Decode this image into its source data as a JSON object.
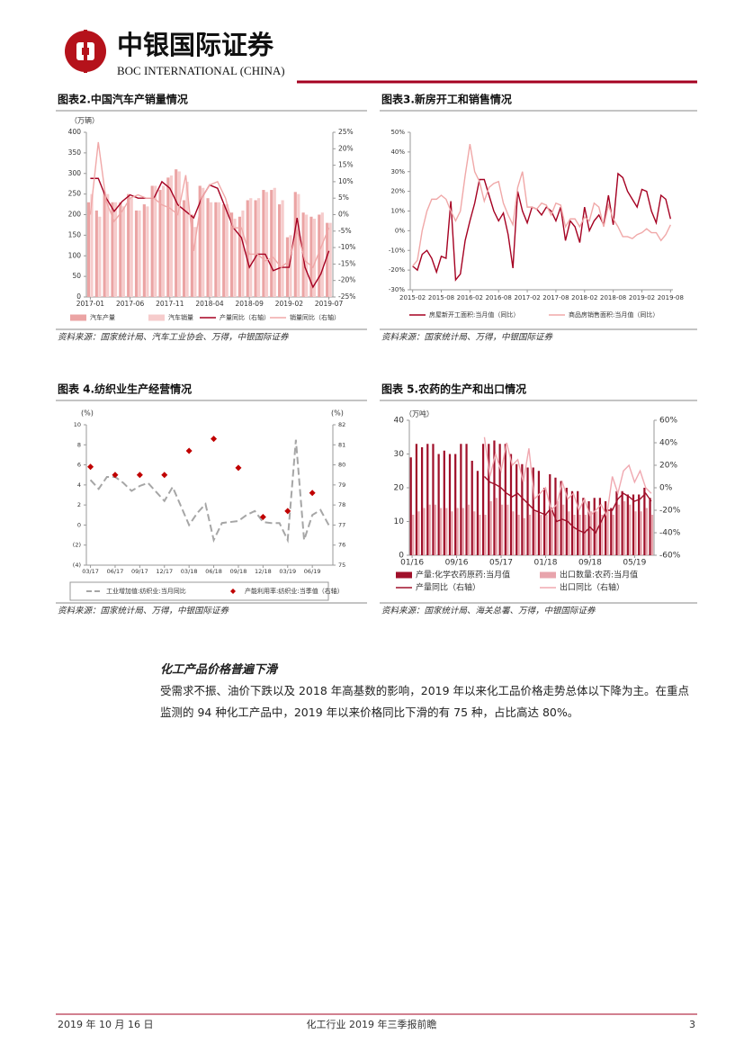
{
  "header": {
    "logo_cn": "中银国际证券",
    "logo_en": "BOC INTERNATIONAL (CHINA)"
  },
  "chart_data": [
    {
      "type": "combo",
      "title": "图表2.中国汽车产销量情况",
      "source": "资料来源：国家统计局、汽车工业协会、万得，中银国际证券",
      "y_unit": "（万辆）",
      "categories": [
        "2017-01",
        null,
        null,
        null,
        null,
        "2017-06",
        null,
        null,
        null,
        null,
        "2017-11",
        null,
        null,
        null,
        null,
        "2018-04",
        null,
        null,
        null,
        null,
        "2018-09",
        null,
        null,
        null,
        null,
        "2019-02",
        null,
        null,
        null,
        null,
        "2019-07"
      ],
      "ylim": [
        0,
        400
      ],
      "yticks": [
        0,
        50,
        100,
        150,
        200,
        250,
        300,
        350,
        400
      ],
      "y2lim": [
        -25,
        25
      ],
      "y2ticks": [
        {
          "value": -25,
          "label": "-25%"
        },
        {
          "value": -20,
          "label": "-20%"
        },
        {
          "value": -15,
          "label": "-15%"
        },
        {
          "value": -10,
          "label": "-10%"
        },
        {
          "value": -5,
          "label": "-5%"
        },
        {
          "value": 0,
          "label": "0%"
        },
        {
          "value": 5,
          "label": "5%"
        },
        {
          "value": 10,
          "label": "10%"
        },
        {
          "value": 15,
          "label": "15%"
        },
        {
          "value": 20,
          "label": "20%"
        },
        {
          "value": 25,
          "label": "25%"
        }
      ],
      "series": [
        {
          "name": "汽车产量",
          "kind": "bar",
          "color": "#eba4a4",
          "values": [
            230,
            210,
            255,
            230,
            230,
            250,
            210,
            225,
            270,
            260,
            290,
            310,
            235,
            200,
            270,
            240,
            230,
            225,
            205,
            195,
            235,
            235,
            260,
            260,
            225,
            145,
            255,
            205,
            195,
            200,
            180
          ]
        },
        {
          "name": "汽车销量",
          "kind": "bar",
          "color": "#f6cccc",
          "values": [
            250,
            195,
            250,
            230,
            220,
            240,
            210,
            220,
            270,
            270,
            295,
            305,
            280,
            170,
            265,
            230,
            230,
            225,
            190,
            210,
            240,
            240,
            255,
            265,
            235,
            150,
            250,
            200,
            190,
            205,
            180
          ]
        },
        {
          "name": "产量同比（右轴）",
          "kind": "line",
          "axis": "y2",
          "color": "#a50021",
          "values": [
            11,
            11,
            5,
            1,
            4,
            6,
            5,
            5,
            5,
            10,
            8,
            3,
            1,
            -1,
            5,
            9,
            8,
            2,
            -4,
            -7,
            -16,
            -12,
            -12,
            -17,
            -16,
            -16,
            -1,
            -16,
            -22,
            -18,
            -11
          ]
        },
        {
          "name": "销量同比（右轴）",
          "kind": "line",
          "axis": "y2",
          "color": "#f0a8a8",
          "values": [
            0,
            22,
            4,
            -2,
            1,
            5,
            6,
            5,
            5,
            3,
            2,
            0,
            12,
            -11,
            5,
            9,
            10,
            5,
            -4,
            -4,
            -12,
            -12,
            -14,
            -13,
            -16,
            -14,
            -5,
            -14,
            -16,
            -10,
            -4
          ]
        }
      ]
    },
    {
      "type": "line",
      "title": "图表3.新房开工和销售情况",
      "source": "资料来源：国家统计局、万得，中银国际证券",
      "categories": [
        "2015-02",
        null,
        null,
        null,
        null,
        null,
        "2015-08",
        null,
        null,
        null,
        null,
        null,
        "2016-02",
        null,
        null,
        null,
        null,
        null,
        "2016-08",
        null,
        null,
        null,
        null,
        null,
        "2017-02",
        null,
        null,
        null,
        null,
        null,
        "2017-08",
        null,
        null,
        null,
        null,
        null,
        "2018-02",
        null,
        null,
        null,
        null,
        null,
        "2018-08",
        null,
        null,
        null,
        null,
        null,
        "2019-02",
        null,
        null,
        null,
        null,
        null,
        "2019-08"
      ],
      "ylim": [
        -30,
        50
      ],
      "yticks": [
        {
          "value": -30,
          "label": "-30%"
        },
        {
          "value": -20,
          "label": "-20%"
        },
        {
          "value": -10,
          "label": "-10%"
        },
        {
          "value": 0,
          "label": "0%"
        },
        {
          "value": 10,
          "label": "10%"
        },
        {
          "value": 20,
          "label": "20%"
        },
        {
          "value": 30,
          "label": "30%"
        },
        {
          "value": 40,
          "label": "40%"
        },
        {
          "value": 50,
          "label": "50%"
        }
      ],
      "series": [
        {
          "name": "房屋新开工面积:当月值（同比）",
          "kind": "line",
          "color": "#a50021",
          "values": [
            -18,
            -20,
            -12,
            -10,
            -14,
            -21,
            -13,
            -14,
            15,
            -25,
            -22,
            -5,
            5,
            14,
            26,
            26,
            18,
            10,
            5,
            9,
            -2,
            -19,
            20,
            10,
            4,
            12,
            11,
            8,
            12,
            10,
            5,
            12,
            -5,
            5,
            2,
            -6,
            12,
            0,
            5,
            8,
            3,
            18,
            3,
            29,
            27,
            20,
            16,
            12,
            21,
            20,
            10,
            4,
            18,
            16,
            6
          ]
        },
        {
          "name": "商品房销售面积:当月值（同比）",
          "kind": "line",
          "color": "#f0a8a8",
          "values": [
            -18,
            -15,
            0,
            10,
            16,
            16,
            18,
            16,
            10,
            5,
            10,
            28,
            44,
            30,
            25,
            15,
            22,
            24,
            25,
            14,
            8,
            3,
            22,
            30,
            12,
            12,
            11,
            14,
            13,
            8,
            14,
            13,
            2,
            6,
            6,
            2,
            7,
            5,
            14,
            12,
            2,
            13,
            6,
            2,
            -3,
            -3,
            -4,
            -2,
            -1,
            1,
            -1,
            -1,
            -5,
            -2,
            3
          ]
        }
      ]
    },
    {
      "type": "combo",
      "title": "图表 4.纺织业生产经营情况",
      "source": "资料来源：国家统计局、万得，中银国际证券",
      "y_unit": "(%)",
      "y2_unit": "(%)",
      "categories": [
        "03/17",
        null,
        null,
        "06/17",
        null,
        null,
        "09/17",
        null,
        null,
        "12/17",
        null,
        null,
        "03/18",
        null,
        null,
        "06/18",
        null,
        null,
        "09/18",
        null,
        null,
        "12/18",
        null,
        null,
        "03/19",
        null,
        null,
        "06/19",
        null,
        null
      ],
      "ylim": [
        -4,
        10
      ],
      "yticks": [
        {
          "value": -4,
          "label": "(4)"
        },
        {
          "value": -2,
          "label": "(2)"
        },
        0,
        2,
        4,
        6,
        8,
        10
      ],
      "y2lim": [
        75,
        82
      ],
      "y2ticks": [
        75,
        76,
        77,
        78,
        79,
        80,
        81,
        82
      ],
      "series": [
        {
          "name": "工业增加值:纺织业:当月同比",
          "kind": "line",
          "style": "dashed",
          "color": "#a6a6a6",
          "values": [
            4.5,
            3.6,
            4.8,
            4.8,
            4.2,
            3.4,
            3.9,
            4.2,
            3.3,
            2.4,
            3.8,
            1.9,
            0.0,
            1.2,
            2.1,
            -1.5,
            0.2,
            0.3,
            0.4,
            1.0,
            1.4,
            0.3,
            0.2,
            0.2,
            -1.5,
            8.5,
            -1.5,
            1.0,
            1.5,
            0.0
          ]
        },
        {
          "name": "产能利用率:纺织业:当季值（右轴）",
          "kind": "marker",
          "axis": "y2",
          "color": "#c00000",
          "values": [
            79.9,
            null,
            null,
            79.5,
            null,
            null,
            79.5,
            null,
            null,
            79.5,
            null,
            null,
            80.7,
            null,
            null,
            81.3,
            null,
            null,
            79.85,
            null,
            null,
            77.4,
            null,
            null,
            77.7,
            null,
            null,
            78.6,
            null,
            null
          ]
        }
      ]
    },
    {
      "type": "combo",
      "title": "图表 5.农药的生产和出口情况",
      "source": "资料来源：国家统计局、海关总署、万得，中银国际证券",
      "y_unit": "（万吨）",
      "categories": [
        "01/16",
        null,
        null,
        null,
        null,
        null,
        null,
        null,
        "09/16",
        null,
        null,
        null,
        null,
        null,
        null,
        null,
        "05/17",
        null,
        null,
        null,
        null,
        null,
        null,
        null,
        "01/18",
        null,
        null,
        null,
        null,
        null,
        null,
        null,
        "09/18",
        null,
        null,
        null,
        null,
        null,
        null,
        null,
        "05/19",
        null,
        null,
        null
      ],
      "ylim": [
        0,
        40
      ],
      "yticks": [
        0,
        10,
        20,
        30,
        40
      ],
      "y2lim": [
        -60,
        60
      ],
      "y2ticks": [
        {
          "value": -60,
          "label": "-60%"
        },
        {
          "value": -40,
          "label": "-40%"
        },
        {
          "value": -20,
          "label": "-20%"
        },
        {
          "value": 0,
          "label": "0%"
        },
        {
          "value": 20,
          "label": "20%"
        },
        {
          "value": 40,
          "label": "40%"
        },
        {
          "value": 60,
          "label": "60%"
        }
      ],
      "series": [
        {
          "name": "产量:化学农药原药:当月值",
          "kind": "bar",
          "color": "#a0102a",
          "values": [
            29,
            33,
            32,
            33,
            33,
            30,
            31,
            30,
            30,
            33,
            33,
            28,
            25,
            33,
            33,
            34,
            33,
            33,
            30,
            27,
            27,
            26,
            26,
            25,
            20,
            24,
            23,
            22,
            20,
            19,
            19,
            17,
            16,
            17,
            17,
            16,
            14,
            19,
            19,
            18,
            18,
            18,
            20,
            17
          ]
        },
        {
          "name": "出口数量:农药:当月值",
          "kind": "bar",
          "color": "#e8a4ac",
          "values": [
            12,
            13,
            14,
            15,
            15,
            14,
            14,
            13,
            14,
            14,
            15,
            13,
            12,
            12,
            16,
            17,
            15,
            15,
            13,
            12,
            11,
            12,
            13,
            12,
            12,
            14,
            16,
            15,
            13,
            12,
            12,
            12,
            13,
            13,
            12,
            13,
            12,
            15,
            16,
            15,
            13,
            13,
            14,
            12
          ]
        },
        {
          "name": "产量同比（右轴）",
          "kind": "line",
          "axis": "y2",
          "color": "#a0102a",
          "values": [
            null,
            null,
            null,
            null,
            null,
            null,
            null,
            null,
            null,
            null,
            null,
            null,
            null,
            10,
            5,
            3,
            0,
            -5,
            -8,
            -5,
            -10,
            -15,
            -20,
            -22,
            -24,
            -18,
            -30,
            -28,
            -30,
            -35,
            -38,
            -40,
            -35,
            -40,
            -30,
            -20,
            -20,
            -10,
            -5,
            -8,
            -12,
            -10,
            -5,
            -12
          ]
        },
        {
          "name": "出口同比（右轴）",
          "kind": "line",
          "axis": "y2",
          "color": "#f0a8b0",
          "values": [
            null,
            null,
            null,
            null,
            null,
            null,
            null,
            null,
            null,
            null,
            null,
            null,
            null,
            45,
            10,
            30,
            15,
            40,
            20,
            25,
            5,
            35,
            -10,
            -5,
            0,
            -20,
            -15,
            5,
            -10,
            -5,
            -20,
            -10,
            -25,
            -20,
            -15,
            -25,
            10,
            -5,
            15,
            20,
            5,
            15,
            0,
            -5
          ]
        }
      ]
    }
  ],
  "section": {
    "heading": "化工产品价格普遍下滑",
    "paragraph": "受需求不振、油价下跌以及 2018 年高基数的影响，2019 年以来化工品价格走势总体以下降为主。在重点监测的 94 种化工产品中，2019 年以来价格同比下滑的有 75 种，占比高达 80%。"
  },
  "footer": {
    "date": "2019 年 10 月 16 日",
    "title": "化工行业 2019 年三季报前瞻",
    "page": "3"
  }
}
